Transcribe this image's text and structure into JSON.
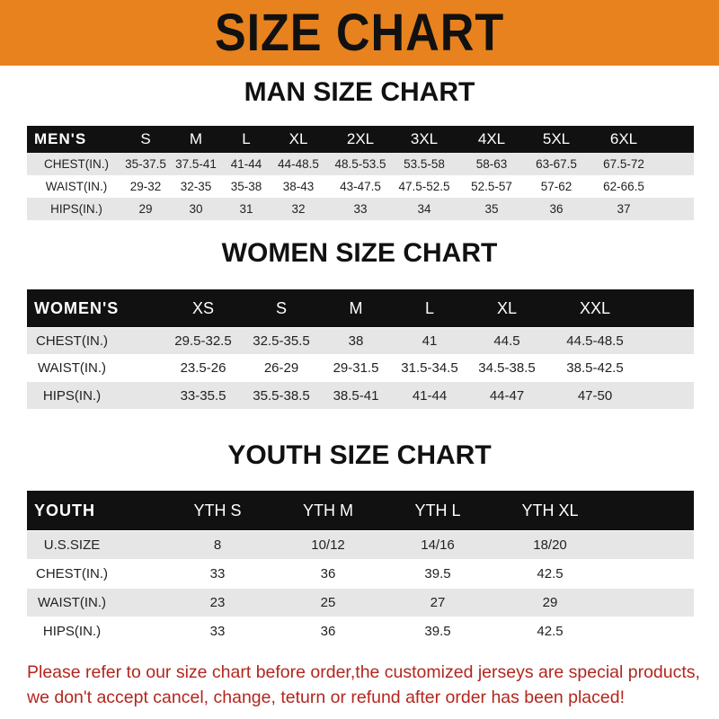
{
  "title": "SIZE CHART",
  "colors": {
    "banner": "#e8821e",
    "header_row": "#111111",
    "note": "#b3261e"
  },
  "men": {
    "title": "MAN SIZE CHART",
    "headers": [
      "MEN'S",
      "S",
      "M",
      "L",
      "XL",
      "2XL",
      "3XL",
      "4XL",
      "5XL",
      "6XL"
    ],
    "rows": [
      [
        "CHEST(IN.)",
        "35-37.5",
        "37.5-41",
        "41-44",
        "44-48.5",
        "48.5-53.5",
        "53.5-58",
        "58-63",
        "63-67.5",
        "67.5-72"
      ],
      [
        "WAIST(IN.)",
        "29-32",
        "32-35",
        "35-38",
        "38-43",
        "43-47.5",
        "47.5-52.5",
        "52.5-57",
        "57-62",
        "62-66.5"
      ],
      [
        "HIPS(IN.)",
        "29",
        "30",
        "31",
        "32",
        "33",
        "34",
        "35",
        "36",
        "37"
      ]
    ]
  },
  "women": {
    "title": "WOMEN SIZE CHART",
    "headers": [
      "WOMEN'S",
      "XS",
      "S",
      "M",
      "L",
      "XL",
      "XXL"
    ],
    "rows": [
      [
        "CHEST(IN.)",
        "29.5-32.5",
        "32.5-35.5",
        "38",
        "41",
        "44.5",
        "44.5-48.5"
      ],
      [
        "WAIST(IN.)",
        "23.5-26",
        "26-29",
        "29-31.5",
        "31.5-34.5",
        "34.5-38.5",
        "38.5-42.5"
      ],
      [
        "HIPS(IN.)",
        "33-35.5",
        "35.5-38.5",
        "38.5-41",
        "41-44",
        "44-47",
        "47-50"
      ]
    ]
  },
  "youth": {
    "title": "YOUTH SIZE CHART",
    "headers": [
      "YOUTH",
      "YTH S",
      "YTH M",
      "YTH L",
      "YTH XL"
    ],
    "rows": [
      [
        "U.S.SIZE",
        "8",
        "10/12",
        "14/16",
        "18/20"
      ],
      [
        "CHEST(IN.)",
        "33",
        "36",
        "39.5",
        "42.5"
      ],
      [
        "WAIST(IN.)",
        "23",
        "25",
        "27",
        "29"
      ],
      [
        "HIPS(IN.)",
        "33",
        "36",
        "39.5",
        "42.5"
      ]
    ]
  },
  "note": {
    "line1": "Please refer to our size chart before order,the customized jerseys are special products,",
    "line2": "we don't accept cancel, change, teturn or refund after order has been placed!"
  }
}
